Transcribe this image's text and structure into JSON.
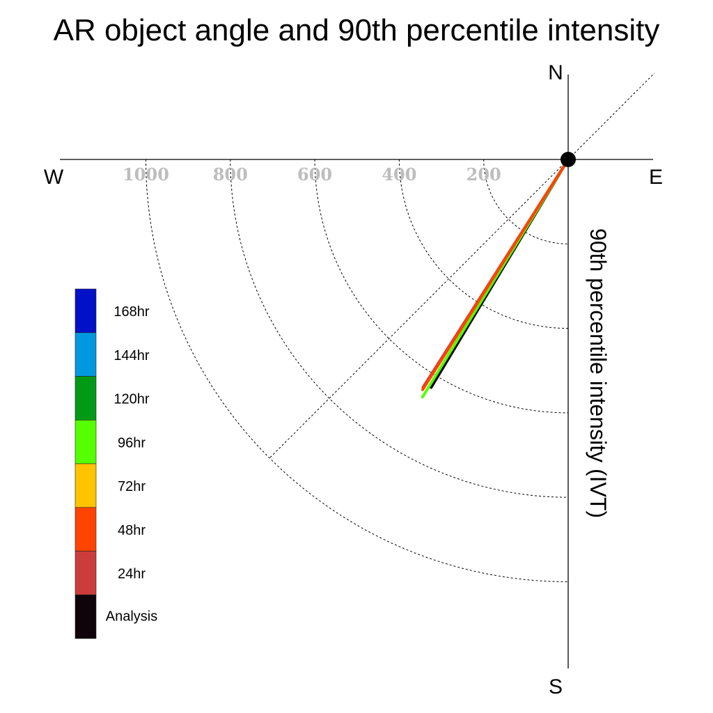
{
  "chart_data": {
    "type": "polar-vector",
    "title": "AR object angle and 90th percentile intensity",
    "ylabel": "90th percentile intensity (IVT)",
    "compass": {
      "north": "N",
      "south": "S",
      "east": "E",
      "west": "W"
    },
    "radial_ticks": [
      "1000",
      "800",
      "600",
      "400",
      "200"
    ],
    "radial_tick_values": [
      1000,
      800,
      600,
      400,
      200
    ],
    "radial_max": 1000,
    "grid": true,
    "legend_position": "left",
    "legend": [
      {
        "label": "168hr",
        "color": "#0011c8"
      },
      {
        "label": "144hr",
        "color": "#0099e0"
      },
      {
        "label": "120hr",
        "color": "#009a16"
      },
      {
        "label": "96hr",
        "color": "#55ff00"
      },
      {
        "label": "72hr",
        "color": "#ffc400"
      },
      {
        "label": "48hr",
        "color": "#ff4400"
      },
      {
        "label": "24hr",
        "color": "#cc3c3c"
      },
      {
        "label": "Analysis",
        "color": "#0e0409"
      }
    ],
    "series": [
      {
        "name": "Analysis",
        "color": "#0e0409",
        "angle_deg": 211,
        "intensity": 630
      },
      {
        "name": "96hr",
        "color": "#55ff00",
        "angle_deg": 211.5,
        "intensity": 660
      },
      {
        "name": "24hr",
        "color": "#cc3c3c",
        "angle_deg": 212.5,
        "intensity": 640
      },
      {
        "name": "48hr",
        "color": "#ff4400",
        "angle_deg": 212.3,
        "intensity": 645
      }
    ]
  }
}
